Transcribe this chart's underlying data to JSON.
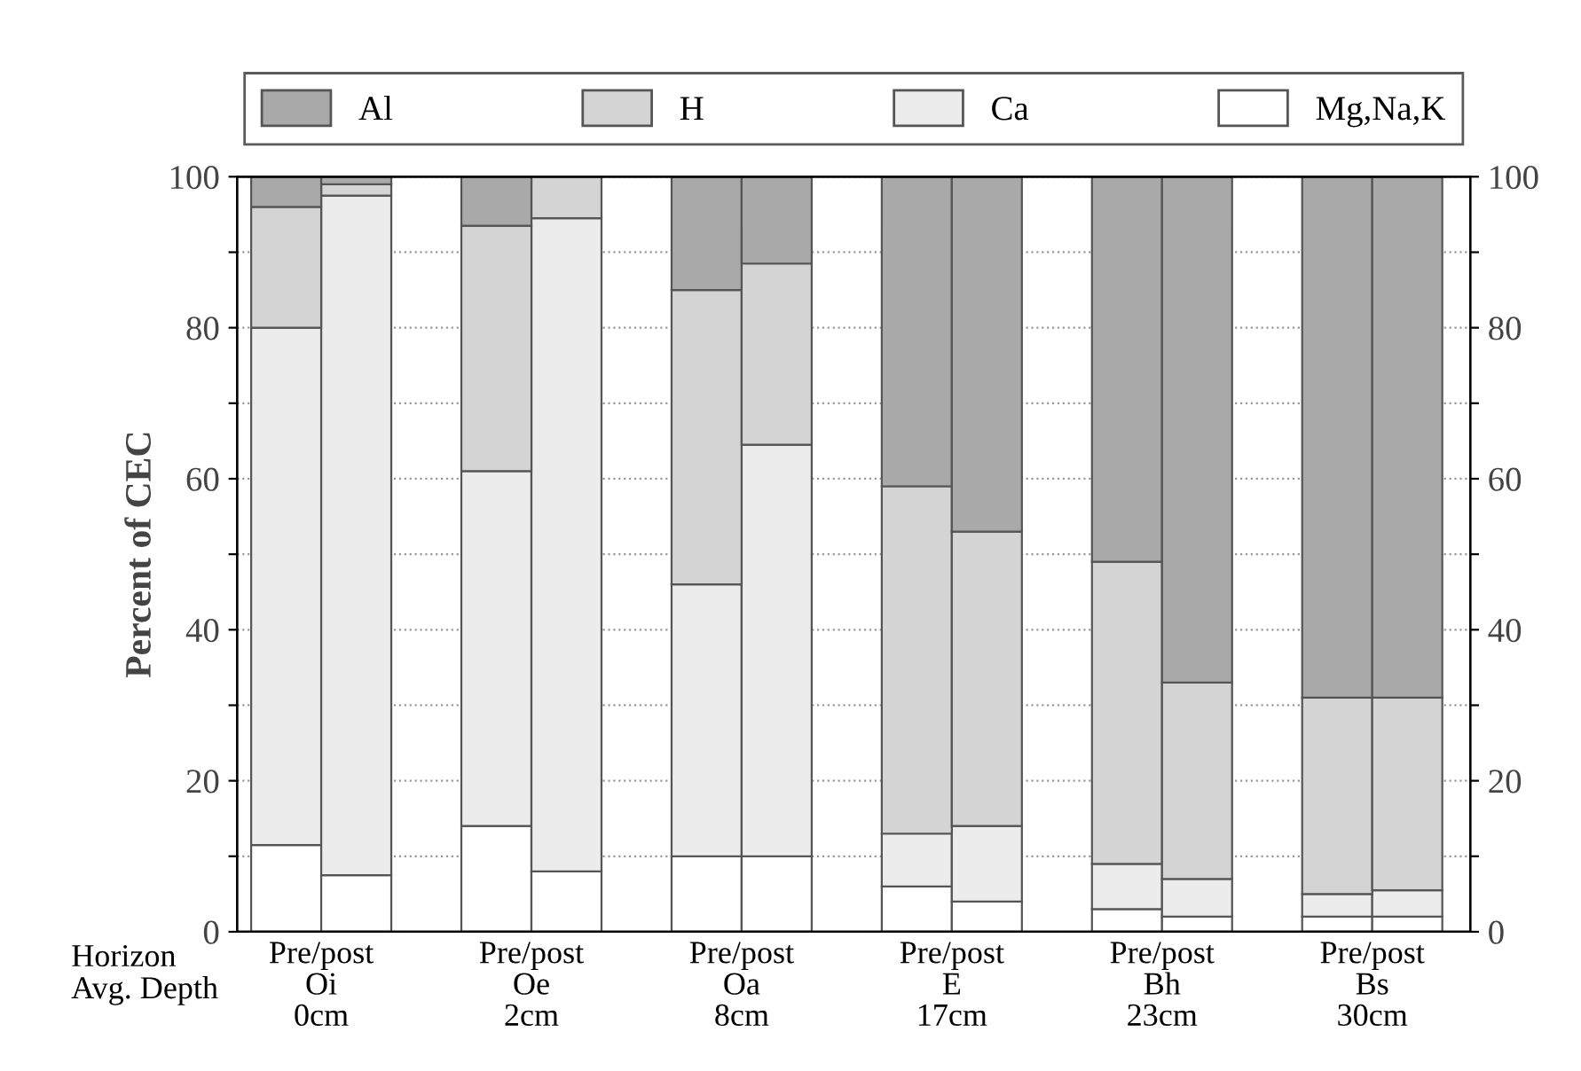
{
  "chart_data": {
    "type": "bar",
    "stacked": true,
    "ylabel": "Percent of CEC",
    "categories": [
      null,
      null,
      null,
      null,
      null,
      null,
      null,
      null,
      null,
      null,
      null,
      null
    ],
    "ylim": [
      0,
      100
    ],
    "yticks": [
      0,
      {
        "value": 10,
        "label": null
      },
      20,
      {
        "value": 30,
        "label": null
      },
      40,
      {
        "value": 50,
        "label": null
      },
      60,
      {
        "value": 70,
        "label": null
      },
      80,
      {
        "value": 90,
        "label": null
      },
      100
    ],
    "y2lim": [
      0,
      100
    ],
    "y2ticks": [
      0,
      {
        "value": 10,
        "label": null
      },
      20,
      {
        "value": 30,
        "label": null
      },
      40,
      {
        "value": 50,
        "label": null
      },
      60,
      {
        "value": 70,
        "label": null
      },
      80,
      {
        "value": 90,
        "label": null
      },
      100
    ],
    "grid": "y",
    "legend": "top",
    "annotations": [
      "Horizon",
      "Avg. Depth",
      "Pre/post\nOi\n0cm",
      "Pre/post\nOe\n2cm",
      "Pre/post\nOa\n8cm",
      "Pre/post\nE\n17cm",
      "Pre/post\nBh\n23cm",
      "Pre/post\nBs\n30cm"
    ],
    "series": [
      {
        "name": "Mg,Na,K",
        "color": "#ffffff",
        "values": [
          11.5,
          7.5,
          14,
          8,
          10,
          10,
          6,
          4,
          3,
          2,
          2,
          2
        ]
      },
      {
        "name": "Ca",
        "color": "#ececec",
        "values": [
          68.5,
          90,
          47,
          86.5,
          36,
          54.5,
          7,
          10,
          6,
          5,
          3,
          3.5
        ]
      },
      {
        "name": "H",
        "color": "#d4d4d4",
        "values": [
          16,
          1.5,
          32.5,
          5.5,
          39,
          24,
          46,
          39,
          40,
          26,
          26,
          25.5
        ]
      },
      {
        "name": "Al",
        "color": "#a9a9a9",
        "values": [
          4,
          1,
          6.5,
          null,
          15,
          11.5,
          41,
          47,
          51,
          67,
          69,
          69
        ]
      }
    ]
  }
}
